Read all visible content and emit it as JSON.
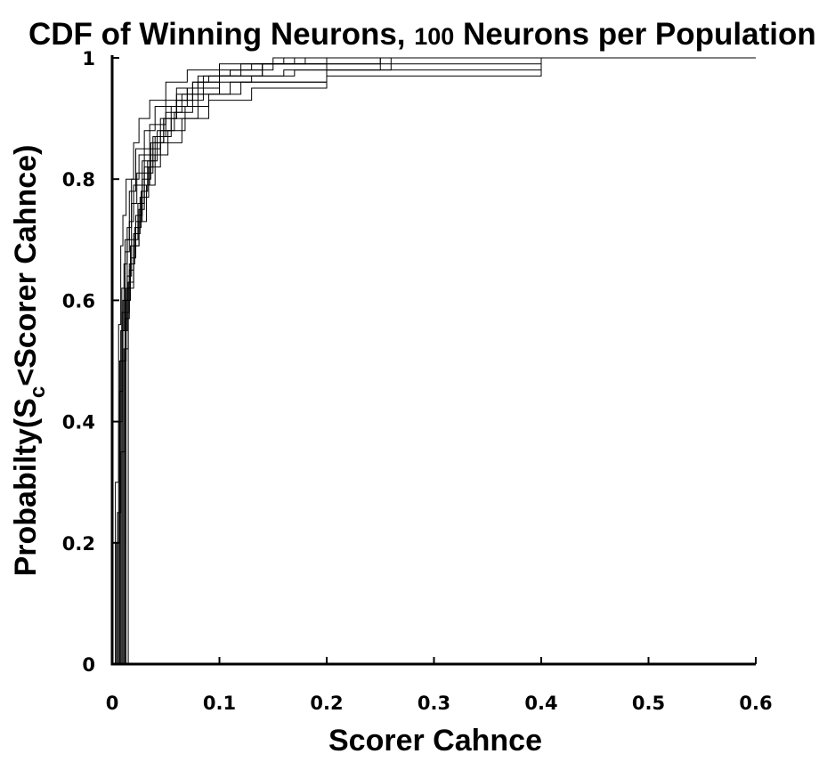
{
  "chart_data": {
    "type": "line",
    "title_main": "CDF of Winning Neurons, ",
    "title_number": "100",
    "title_rest": " Neurons per Population",
    "xlabel": "Scorer Cahnce",
    "ylabel_main": "Probabilty(S",
    "ylabel_sub": "c",
    "ylabel_rest": "<Scorer Cahnce)",
    "xlim": [
      0,
      0.6
    ],
    "ylim": [
      0,
      1
    ],
    "xticks": [
      0,
      0.1,
      0.2,
      0.3,
      0.4,
      0.5,
      0.6
    ],
    "xtick_labels": [
      "0",
      "0.1",
      "0.2",
      "0.3",
      "0.4",
      "0.5",
      "0.6"
    ],
    "yticks": [
      0,
      0.2,
      0.4,
      0.6,
      0.8,
      1
    ],
    "ytick_labels": [
      "0",
      "0.2",
      "0.4",
      "0.6",
      "0.8",
      "1"
    ],
    "grid": false,
    "series": [
      {
        "x": [
          0.003,
          0.006,
          0.008,
          0.01,
          0.013,
          0.02,
          0.025,
          0.035,
          0.05,
          0.07,
          0.1,
          0.25
        ],
        "y": [
          0.3,
          0.56,
          0.69,
          0.74,
          0.8,
          0.86,
          0.9,
          0.93,
          0.96,
          0.98,
          0.99,
          1
        ]
      },
      {
        "x": [
          0.004,
          0.007,
          0.009,
          0.012,
          0.016,
          0.022,
          0.03,
          0.04,
          0.06,
          0.08,
          0.14,
          0.4
        ],
        "y": [
          0.2,
          0.5,
          0.62,
          0.7,
          0.78,
          0.85,
          0.88,
          0.92,
          0.95,
          0.97,
          0.99,
          1
        ]
      },
      {
        "x": [
          0.005,
          0.008,
          0.011,
          0.014,
          0.018,
          0.025,
          0.035,
          0.05,
          0.07,
          0.1,
          0.16,
          0.2
        ],
        "y": [
          0.25,
          0.55,
          0.66,
          0.72,
          0.8,
          0.84,
          0.89,
          0.93,
          0.95,
          0.97,
          0.98,
          1
        ]
      },
      {
        "x": [
          0.006,
          0.009,
          0.012,
          0.016,
          0.02,
          0.028,
          0.04,
          0.055,
          0.08,
          0.11,
          0.2,
          0.26
        ],
        "y": [
          0.4,
          0.58,
          0.68,
          0.73,
          0.79,
          0.83,
          0.87,
          0.9,
          0.94,
          0.96,
          0.98,
          1
        ]
      },
      {
        "x": [
          0.007,
          0.01,
          0.014,
          0.018,
          0.023,
          0.03,
          0.045,
          0.06,
          0.085,
          0.1,
          0.14,
          0.18
        ],
        "y": [
          0.45,
          0.6,
          0.7,
          0.76,
          0.81,
          0.85,
          0.9,
          0.93,
          0.95,
          0.97,
          0.99,
          1
        ]
      },
      {
        "x": [
          0.008,
          0.012,
          0.016,
          0.02,
          0.026,
          0.034,
          0.045,
          0.065,
          0.09,
          0.13,
          0.2,
          0.4
        ],
        "y": [
          0.35,
          0.57,
          0.65,
          0.71,
          0.77,
          0.82,
          0.86,
          0.9,
          0.93,
          0.95,
          0.97,
          1
        ]
      },
      {
        "x": [
          0.009,
          0.013,
          0.017,
          0.022,
          0.028,
          0.036,
          0.048,
          0.06,
          0.075,
          0.1,
          0.15,
          0.2
        ],
        "y": [
          0.5,
          0.62,
          0.69,
          0.74,
          0.8,
          0.86,
          0.9,
          0.94,
          0.96,
          0.98,
          0.99,
          1
        ]
      },
      {
        "x": [
          0.01,
          0.014,
          0.018,
          0.024,
          0.03,
          0.038,
          0.05,
          0.065,
          0.08,
          0.1,
          0.12,
          0.17
        ],
        "y": [
          0.55,
          0.64,
          0.7,
          0.76,
          0.82,
          0.87,
          0.91,
          0.94,
          0.96,
          0.97,
          0.99,
          1
        ]
      },
      {
        "x": [
          0.011,
          0.015,
          0.02,
          0.025,
          0.032,
          0.04,
          0.052,
          0.068,
          0.09,
          0.12,
          0.2,
          0.25
        ],
        "y": [
          0.52,
          0.63,
          0.69,
          0.73,
          0.79,
          0.84,
          0.88,
          0.92,
          0.94,
          0.96,
          0.98,
          1
        ]
      },
      {
        "x": [
          0.012,
          0.016,
          0.021,
          0.027,
          0.033,
          0.042,
          0.055,
          0.07,
          0.085,
          0.11,
          0.14,
          0.16
        ],
        "y": [
          0.58,
          0.66,
          0.72,
          0.78,
          0.83,
          0.88,
          0.92,
          0.95,
          0.97,
          0.98,
          0.99,
          1
        ]
      },
      {
        "x": [
          0.013,
          0.017,
          0.022,
          0.028,
          0.035,
          0.045,
          0.058,
          0.075,
          0.1,
          0.13,
          0.17,
          0.4
        ],
        "y": [
          0.6,
          0.67,
          0.73,
          0.79,
          0.84,
          0.88,
          0.91,
          0.94,
          0.96,
          0.97,
          0.98,
          1
        ]
      },
      {
        "x": [
          0.015,
          0.02,
          0.025,
          0.03,
          0.038,
          0.048,
          0.06,
          0.075,
          0.09,
          0.11,
          0.13,
          0.15
        ],
        "y": [
          0.62,
          0.69,
          0.75,
          0.81,
          0.86,
          0.9,
          0.93,
          0.96,
          0.97,
          0.98,
          0.99,
          1
        ]
      }
    ]
  }
}
